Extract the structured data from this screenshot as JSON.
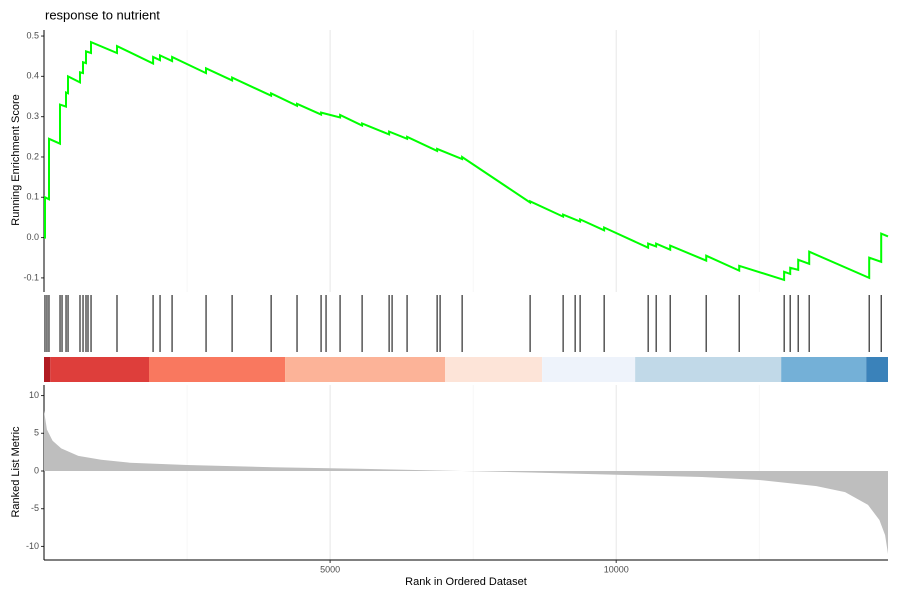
{
  "chart_data": [
    {
      "type": "line",
      "title": "response to nutrient",
      "y_label": "Running Enrichment Score",
      "color": "#00ff00",
      "x": [
        0,
        17,
        17,
        87,
        87,
        280,
        280,
        385,
        385,
        420,
        420,
        629,
        629,
        682,
        682,
        734,
        734,
        822,
        822,
        1276,
        1276,
        1906,
        1906,
        2028,
        2028,
        2238,
        2238,
        2832,
        2832,
        3287,
        3287,
        3969,
        3969,
        4422,
        4422,
        4842,
        4842,
        5174,
        5174,
        5559,
        5559,
        6031,
        6031,
        6345,
        6345,
        6870,
        6870,
        7307,
        7307,
        8495,
        8495,
        9072,
        9072,
        9369,
        9369,
        9789,
        9789,
        10558,
        10558,
        10698,
        10698,
        10943,
        10943,
        11572,
        11572,
        12149,
        12149,
        12935,
        12935,
        13040,
        13040,
        13180,
        13180,
        13372,
        13372,
        14421,
        14421,
        14631,
        14631,
        14750
      ],
      "values": [
        0,
        0,
        0.1,
        0.095,
        0.245,
        0.233,
        0.33,
        0.325,
        0.36,
        0.358,
        0.4,
        0.385,
        0.41,
        0.408,
        0.435,
        0.433,
        0.462,
        0.458,
        0.485,
        0.458,
        0.475,
        0.432,
        0.448,
        0.44,
        0.452,
        0.438,
        0.448,
        0.408,
        0.42,
        0.39,
        0.397,
        0.352,
        0.358,
        0.327,
        0.332,
        0.305,
        0.31,
        0.298,
        0.304,
        0.278,
        0.283,
        0.256,
        0.263,
        0.245,
        0.25,
        0.215,
        0.22,
        0.195,
        0.2,
        0.087,
        0.09,
        0.052,
        0.057,
        0.04,
        0.045,
        0.018,
        0.025,
        -0.025,
        -0.015,
        -0.022,
        -0.015,
        -0.03,
        -0.02,
        -0.057,
        -0.045,
        -0.082,
        -0.07,
        -0.105,
        -0.085,
        -0.09,
        -0.075,
        -0.08,
        -0.055,
        -0.065,
        -0.035,
        -0.1,
        -0.05,
        -0.06,
        0.01,
        0.003
      ],
      "ylim": [
        -0.135,
        0.515
      ],
      "yticks": [
        -0.1,
        {
          "value": 0,
          "label": "0.0"
        },
        0.1,
        0.2,
        0.3,
        0.4,
        0.5
      ]
    },
    {
      "type": "barcode",
      "hits": [
        17,
        52,
        87,
        280,
        315,
        385,
        420,
        629,
        682,
        734,
        769,
        822,
        1276,
        1906,
        2028,
        2238,
        2832,
        3287,
        3969,
        4422,
        4842,
        4929,
        5174,
        5559,
        6031,
        6083,
        6345,
        6870,
        6922,
        7307,
        8495,
        9072,
        9282,
        9369,
        9789,
        10558,
        10698,
        10943,
        11572,
        12149,
        12935,
        13040,
        13180,
        13372,
        14421,
        14631
      ],
      "band_edges": [
        0,
        110,
        1835,
        4213,
        7011,
        8705,
        10331,
        12883,
        14369,
        14750
      ],
      "band_colors": [
        "#b11b22",
        "#de3e3b",
        "#f9785f",
        "#fcb398",
        "#fde4d8",
        "#eef3fb",
        "#c1d9e8",
        "#74b0d7",
        "#3a82ba"
      ]
    },
    {
      "type": "area",
      "y_label": "Ranked List Metric",
      "x_label": "Rank in Ordered Dataset",
      "color": "#bebebe",
      "x": [
        0,
        50,
        150,
        300,
        600,
        1000,
        1500,
        2500,
        4000,
        5500,
        7000,
        8500,
        10000,
        11500,
        12500,
        13500,
        14000,
        14400,
        14600,
        14700,
        14750
      ],
      "values": [
        8,
        5.5,
        4,
        3,
        2,
        1.5,
        1.1,
        0.8,
        0.5,
        0.3,
        0.05,
        -0.2,
        -0.5,
        -0.8,
        -1.2,
        -2,
        -2.8,
        -4.5,
        -6.5,
        -8.5,
        -11
      ],
      "xlim": [
        0,
        14750
      ],
      "xticks": [
        5000,
        10000
      ],
      "xminor": [
        2500,
        7500,
        12500
      ],
      "ylim": [
        -11.8,
        11.4
      ],
      "yticks": [
        -10,
        -5,
        0,
        5,
        10
      ]
    }
  ]
}
